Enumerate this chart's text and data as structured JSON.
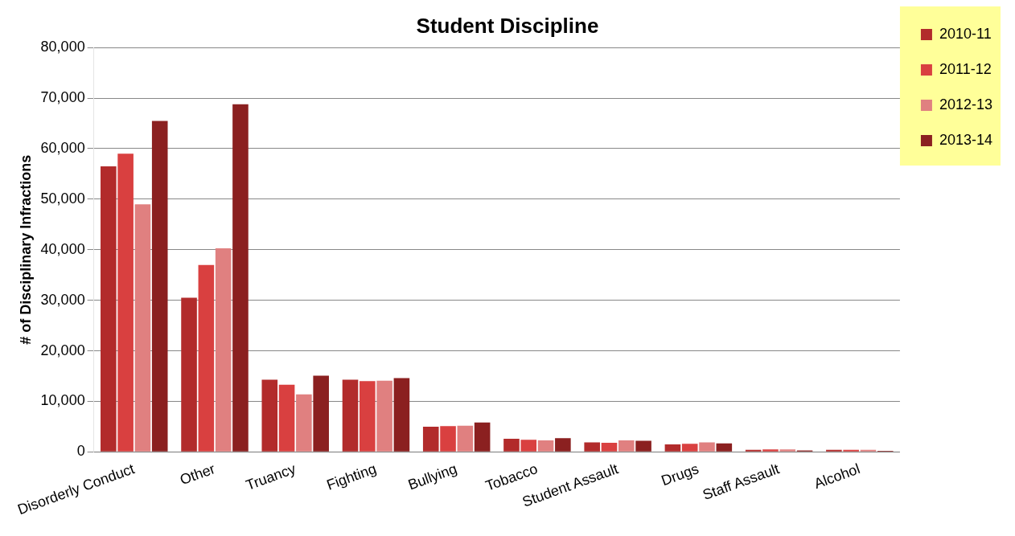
{
  "chart_data": {
    "type": "bar",
    "title": "Student Discipline",
    "ylabel": "# of Disciplinary Infractions",
    "categories": [
      "Disorderly Conduct",
      "Other",
      "Truancy",
      "Fighting",
      "Bullying",
      "Tobacco",
      "Student Assault",
      "Drugs",
      "Staff Assault",
      "Alcohol"
    ],
    "series": [
      {
        "name": "2010-11",
        "color": "#b22b2b",
        "values": [
          56500,
          30500,
          14300,
          14300,
          5000,
          2600,
          1900,
          1500,
          400,
          400
        ]
      },
      {
        "name": "2011-12",
        "color": "#d94040",
        "values": [
          59000,
          37000,
          13300,
          14000,
          5100,
          2400,
          1800,
          1600,
          500,
          400
        ]
      },
      {
        "name": "2012-13",
        "color": "#e08080",
        "values": [
          49000,
          40300,
          11400,
          14100,
          5200,
          2300,
          2300,
          1900,
          500,
          400
        ]
      },
      {
        "name": "2013-14",
        "color": "#8b2020",
        "values": [
          65500,
          68800,
          15100,
          14600,
          5800,
          2700,
          2200,
          1700,
          300,
          200
        ]
      }
    ],
    "ylim": [
      0,
      80000
    ],
    "yticks": [
      0,
      {
        "value": 10000,
        "label": "10,000"
      },
      {
        "value": 20000,
        "label": "20,000"
      },
      {
        "value": 30000,
        "label": "30,000"
      },
      {
        "value": 40000,
        "label": "40,000"
      },
      {
        "value": 50000,
        "label": "50,000"
      },
      {
        "value": 60000,
        "label": "60,000"
      },
      {
        "value": 70000,
        "label": "70,000"
      },
      {
        "value": 80000,
        "label": "80,000"
      }
    ],
    "grid": "y",
    "legend": "top right"
  }
}
